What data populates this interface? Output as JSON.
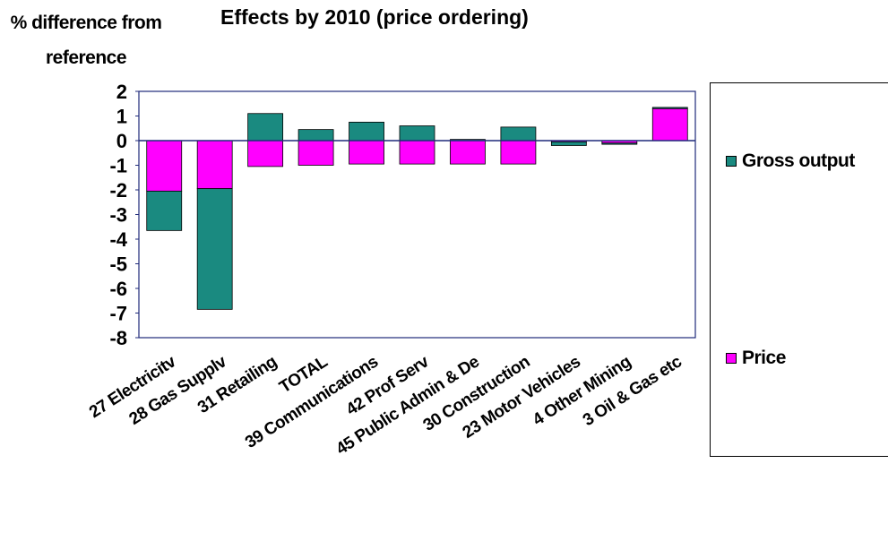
{
  "chart_data": {
    "type": "bar",
    "stacked": true,
    "title": "Effects by 2010 (price ordering)",
    "ylabel": "% difference from reference",
    "ylim": [
      -8,
      2
    ],
    "yticks": [
      2,
      1,
      0,
      -1,
      -2,
      -3,
      -4,
      -5,
      -6,
      -7,
      -8
    ],
    "grid": false,
    "legend_position": "right",
    "categories": [
      "27 Electricity",
      "28 Gas Supply",
      "31 Retailing",
      "TOTAL",
      "39 Communications",
      "42 Prof Serv",
      "45 Public Admin & Def",
      "30 Construction",
      "23 Motor Vehicles",
      "4 Other Mining",
      "3 Oil & Gas etc"
    ],
    "category_labels_shown": [
      "27 Electricitv",
      "28 Gas Supplv",
      "31 Retailing",
      "TOTAL",
      "39 Communications",
      "42 Prof Serv",
      "45 Public Admin & De",
      "30 Construction",
      "23 Motor Vehicles",
      "4 Other Mining",
      "3 Oil & Gas etc"
    ],
    "series": [
      {
        "name": "Gross output",
        "color": "#1a8a80",
        "values": [
          -1.6,
          -4.9,
          1.1,
          0.45,
          0.75,
          0.6,
          0.05,
          0.55,
          -0.15,
          -0.05,
          0.05
        ]
      },
      {
        "name": "Price",
        "color": "#ff00ff",
        "values": [
          -2.05,
          -1.95,
          -1.05,
          -1.0,
          -0.95,
          -0.95,
          -0.95,
          -0.95,
          -0.05,
          -0.1,
          1.3
        ]
      }
    ]
  }
}
